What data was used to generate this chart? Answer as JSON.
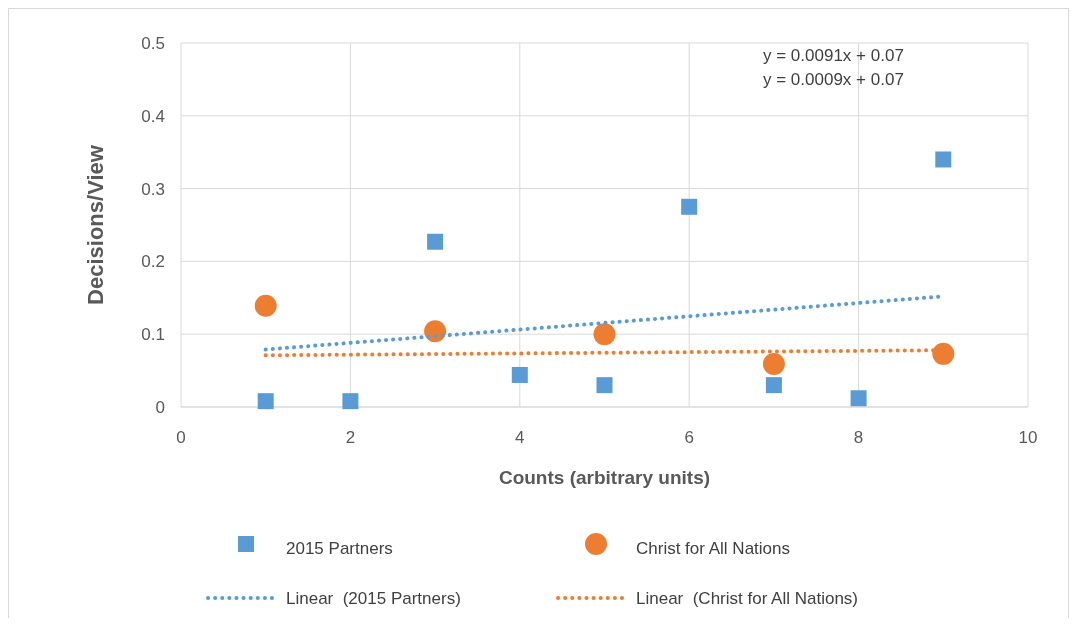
{
  "chart_data": {
    "type": "scatter",
    "xlabel": "Counts (arbitrary units)",
    "ylabel": "Decisions/View",
    "xlim": [
      0,
      10
    ],
    "xticks": [
      0,
      2,
      4,
      6,
      8,
      10
    ],
    "ylim": [
      0,
      0.5
    ],
    "yticks": [
      0,
      0.1,
      0.2,
      0.3,
      0.4,
      0.5
    ],
    "grid": true,
    "legend": "bottom",
    "annotations": [
      "y = 0.0091x + 0.07",
      "y = 0.0009x + 0.07"
    ],
    "series": [
      {
        "name": "2015 Partners",
        "marker": "square",
        "color": "#5b9bd5",
        "x": [
          1,
          2,
          3,
          4,
          5,
          6,
          7,
          8,
          9
        ],
        "values": [
          0.008,
          0.008,
          0.227,
          0.044,
          0.03,
          0.275,
          0.03,
          0.012,
          0.34
        ]
      },
      {
        "name": "Christ for All Nations",
        "marker": "circle",
        "color": "#ed7d31",
        "x": [
          1,
          3,
          5,
          7,
          9
        ],
        "values": [
          0.139,
          0.104,
          0.1,
          0.059,
          0.073
        ]
      },
      {
        "name": "Linear  (2015 Partners)",
        "type": "line",
        "marker": "none",
        "line_style": "dotted",
        "color": "#5b9bd5",
        "x": [
          1,
          9
        ],
        "values": [
          0.079,
          0.152
        ]
      },
      {
        "name": "Linear  (Christ for All Nations)",
        "type": "line",
        "marker": "none",
        "line_style": "dotted",
        "color": "#ed7d31",
        "x": [
          1,
          9
        ],
        "values": [
          0.071,
          0.078
        ]
      }
    ]
  }
}
